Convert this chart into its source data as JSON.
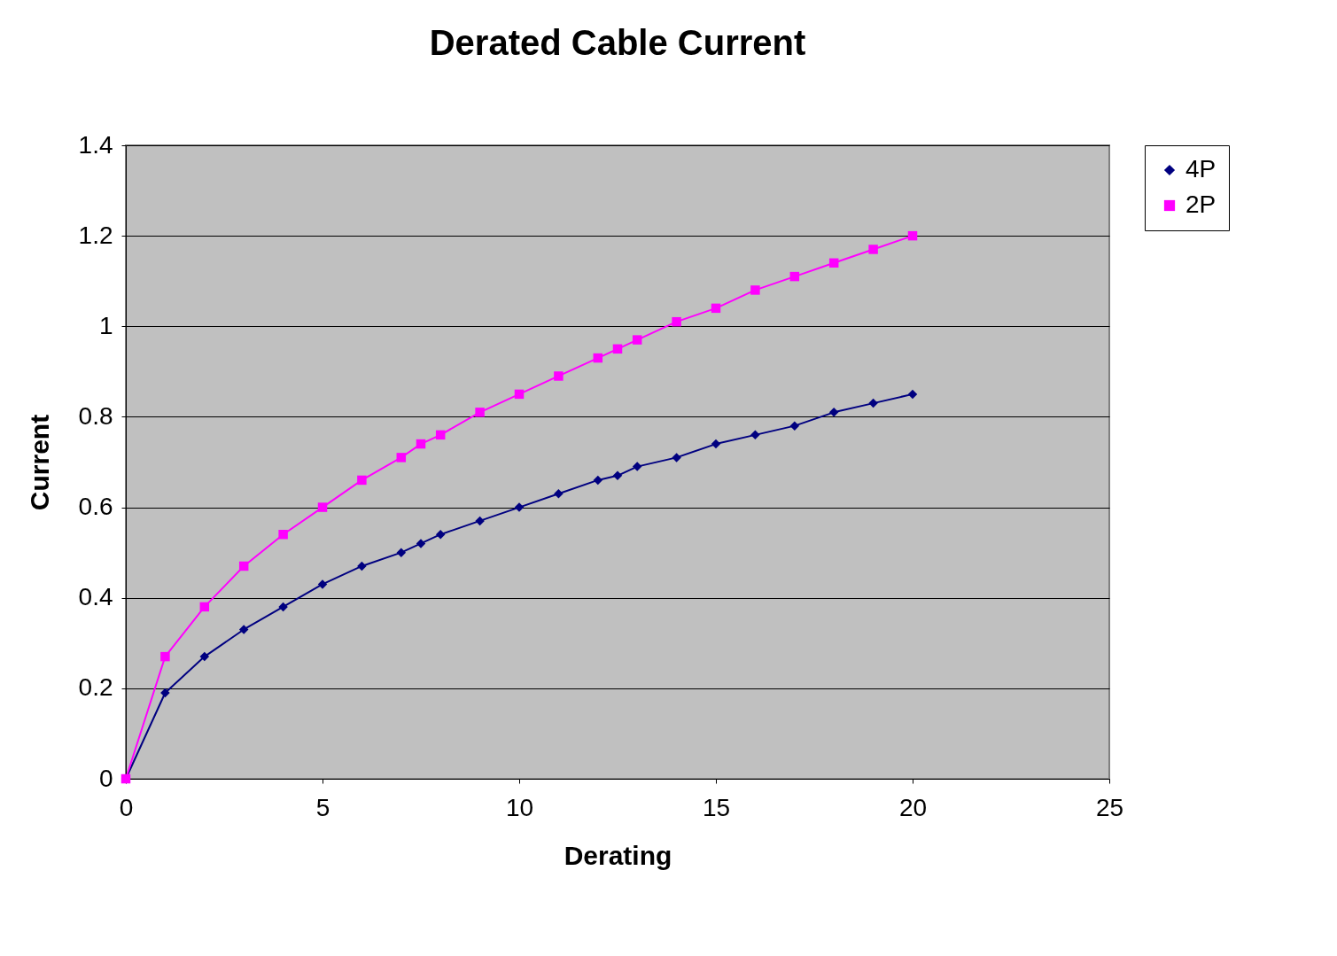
{
  "chart_data": {
    "type": "line",
    "title": "Derated Cable Current",
    "xlabel": "Derating",
    "ylabel": "Current",
    "x": [
      0,
      1,
      2,
      3,
      4,
      5,
      6,
      7,
      7.5,
      8,
      9,
      10,
      11,
      12,
      12.5,
      13,
      14,
      15,
      16,
      17,
      18,
      19,
      20
    ],
    "series": [
      {
        "name": "4P",
        "color": "#000080",
        "marker": "diamond",
        "values": [
          0,
          0.19,
          0.27,
          0.33,
          0.38,
          0.43,
          0.47,
          0.5,
          0.52,
          0.54,
          0.57,
          0.6,
          0.63,
          0.66,
          0.67,
          0.69,
          0.71,
          0.74,
          0.76,
          0.78,
          0.81,
          0.83,
          0.85
        ]
      },
      {
        "name": "2P",
        "color": "#ff00ff",
        "marker": "square",
        "values": [
          0,
          0.27,
          0.38,
          0.47,
          0.54,
          0.6,
          0.66,
          0.71,
          0.74,
          0.76,
          0.81,
          0.85,
          0.89,
          0.93,
          0.95,
          0.97,
          1.01,
          1.04,
          1.08,
          1.11,
          1.14,
          1.17,
          1.2
        ]
      }
    ],
    "xlim": [
      0,
      25
    ],
    "xticks": [
      0,
      5,
      10,
      15,
      20,
      25
    ],
    "ylim": [
      0,
      1.4
    ],
    "yticks": [
      0,
      0.2,
      0.4,
      0.6,
      0.8,
      1,
      1.2,
      1.4
    ],
    "grid": "y",
    "legend": "right",
    "line_style": "solid"
  }
}
